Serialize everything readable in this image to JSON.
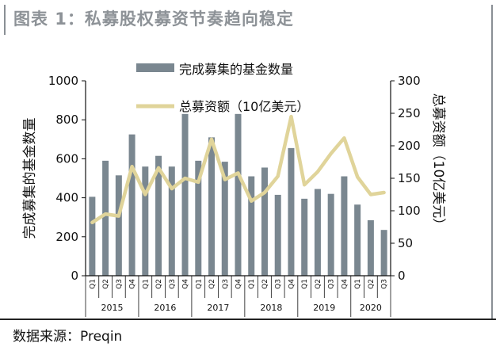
{
  "title": "图表 1：私募股权募资节奏趋向稳定",
  "source": "数据来源：Preqin",
  "colors": {
    "bar": "#7a8790",
    "line": "#e0d49a",
    "title": "#8d9297"
  },
  "chart_data": {
    "type": "bar",
    "categories": [
      "Q1",
      "Q2",
      "Q3",
      "Q4",
      "Q1",
      "Q2",
      "Q3",
      "Q4",
      "Q1",
      "Q2",
      "Q3",
      "Q4",
      "Q1",
      "Q2",
      "Q3",
      "Q4",
      "Q1",
      "Q2",
      "Q3",
      "Q4",
      "Q1",
      "Q2",
      "Q3"
    ],
    "years": [
      "2015",
      "2016",
      "2017",
      "2018",
      "2019",
      "2020"
    ],
    "year_quarters": [
      4,
      4,
      4,
      4,
      4,
      3
    ],
    "series": [
      {
        "name": "完成募集的基金数量",
        "type": "bar",
        "axis": "left",
        "values": [
          405,
          590,
          515,
          725,
          560,
          615,
          560,
          830,
          590,
          710,
          585,
          830,
          510,
          555,
          415,
          655,
          395,
          445,
          420,
          510,
          365,
          285,
          235
        ]
      },
      {
        "name": "总募资额（10亿美元）",
        "type": "line",
        "axis": "right",
        "values": [
          82,
          95,
          92,
          168,
          125,
          166,
          134,
          150,
          144,
          210,
          148,
          158,
          115,
          128,
          153,
          245,
          140,
          160,
          188,
          212,
          152,
          125,
          128
        ]
      }
    ],
    "ylabel_left": "完成募集的基金数量",
    "ylabel_right": "总募资额（10亿美元）",
    "ylim_left": [
      0,
      1000
    ],
    "ylim_right": [
      0,
      300
    ],
    "yticks_left": [
      "0",
      "200",
      "400",
      "600",
      "800",
      "1000"
    ],
    "yticks_right": [
      "0",
      "50",
      "100",
      "150",
      "200",
      "250",
      "300"
    ],
    "legend": "top-center",
    "grid": false
  }
}
